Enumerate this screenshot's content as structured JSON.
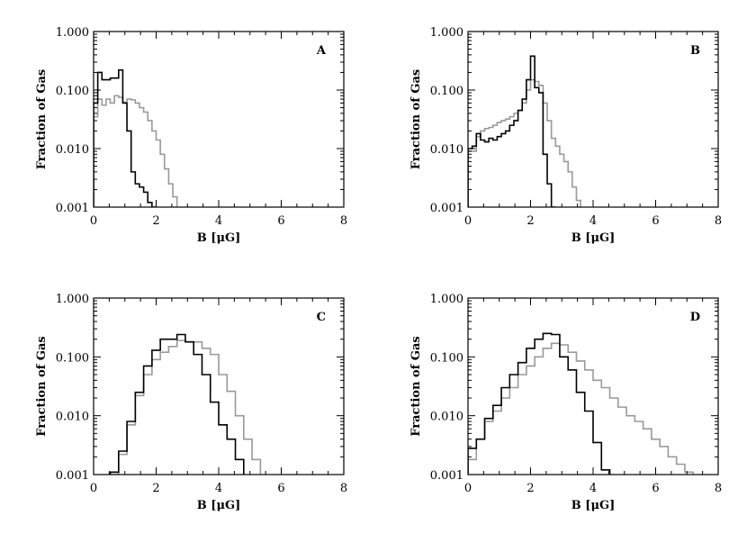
{
  "figure": {
    "layout": "2x2 grid of panels"
  },
  "colors": {
    "series_dark": "#000000",
    "series_light": "#999999",
    "axes": "#000000"
  },
  "chart_data": [
    {
      "type": "line",
      "title": "A",
      "xlabel": "B [μG]",
      "ylabel": "Fraction of Gas",
      "xscale": "linear",
      "yscale": "log",
      "xlim": [
        0,
        8
      ],
      "ylim": [
        0.001,
        1.0
      ],
      "xticks": [
        0,
        2,
        4,
        6,
        8
      ],
      "xtick_labels": [
        "0",
        "2",
        "4",
        "6",
        "8"
      ],
      "yticks": [
        0.001,
        0.01,
        0.1,
        1.0
      ],
      "ytick_labels": [
        "0.001",
        "0.010",
        "0.100",
        "1.000"
      ],
      "label_position": "top-right",
      "grid": false,
      "step_width": 0.133,
      "series": [
        {
          "name": "dark",
          "color": "#000000",
          "x": [
            0.0,
            0.133,
            0.267,
            0.4,
            0.533,
            0.667,
            0.8,
            0.933,
            1.067,
            1.2,
            1.333,
            1.467,
            1.6,
            1.733,
            1.867
          ],
          "y": [
            0.06,
            0.2,
            0.15,
            0.15,
            0.16,
            0.16,
            0.22,
            0.06,
            0.02,
            0.004,
            0.0025,
            0.0022,
            0.0018,
            0.0012,
            0.001
          ]
        },
        {
          "name": "light",
          "color": "#999999",
          "x": [
            0.0,
            0.133,
            0.267,
            0.4,
            0.533,
            0.667,
            0.8,
            0.933,
            1.067,
            1.2,
            1.333,
            1.467,
            1.6,
            1.733,
            1.867,
            2.0,
            2.133,
            2.267,
            2.4,
            2.533
          ],
          "y": [
            0.035,
            0.07,
            0.055,
            0.07,
            0.06,
            0.08,
            0.075,
            0.062,
            0.07,
            0.068,
            0.06,
            0.05,
            0.042,
            0.03,
            0.02,
            0.014,
            0.008,
            0.0045,
            0.0025,
            0.0015
          ]
        }
      ]
    },
    {
      "type": "line",
      "title": "B",
      "xlabel": "B [μG]",
      "ylabel": "Fraction of Gas",
      "xscale": "linear",
      "yscale": "log",
      "xlim": [
        0,
        8
      ],
      "ylim": [
        0.001,
        1.0
      ],
      "xticks": [
        0,
        2,
        4,
        6,
        8
      ],
      "xtick_labels": [
        "0",
        "2",
        "4",
        "6",
        "8"
      ],
      "yticks": [
        0.001,
        0.01,
        0.1,
        1.0
      ],
      "ytick_labels": [
        "0.001",
        "0.010",
        "0.100",
        "1.000"
      ],
      "label_position": "top-right",
      "grid": false,
      "step_width": 0.133,
      "series": [
        {
          "name": "dark",
          "color": "#000000",
          "x": [
            0.0,
            0.133,
            0.267,
            0.4,
            0.533,
            0.667,
            0.8,
            0.933,
            1.067,
            1.2,
            1.333,
            1.467,
            1.6,
            1.733,
            1.867,
            2.0,
            2.133,
            2.267,
            2.4,
            2.533,
            2.667
          ],
          "y": [
            0.01,
            0.011,
            0.018,
            0.014,
            0.013,
            0.015,
            0.014,
            0.016,
            0.018,
            0.02,
            0.025,
            0.03,
            0.045,
            0.07,
            0.15,
            0.38,
            0.11,
            0.09,
            0.008,
            0.0025,
            0.001
          ]
        },
        {
          "name": "light",
          "color": "#999999",
          "x": [
            0.0,
            0.133,
            0.267,
            0.4,
            0.533,
            0.667,
            0.8,
            0.933,
            1.067,
            1.2,
            1.333,
            1.467,
            1.6,
            1.733,
            1.867,
            2.0,
            2.133,
            2.267,
            2.4,
            2.533,
            2.667,
            2.8,
            2.933,
            3.067,
            3.2,
            3.333,
            3.467
          ],
          "y": [
            0.009,
            0.009,
            0.016,
            0.02,
            0.022,
            0.023,
            0.025,
            0.028,
            0.03,
            0.032,
            0.035,
            0.04,
            0.045,
            0.06,
            0.1,
            0.15,
            0.14,
            0.12,
            0.06,
            0.03,
            0.015,
            0.011,
            0.008,
            0.006,
            0.004,
            0.0022,
            0.0013
          ]
        }
      ]
    },
    {
      "type": "line",
      "title": "C",
      "xlabel": "B [μG]",
      "ylabel": "Fraction of Gas",
      "xscale": "linear",
      "yscale": "log",
      "xlim": [
        0,
        8
      ],
      "ylim": [
        0.001,
        1.0
      ],
      "xticks": [
        0,
        2,
        4,
        6,
        8
      ],
      "xtick_labels": [
        "0",
        "2",
        "4",
        "6",
        "8"
      ],
      "yticks": [
        0.001,
        0.01,
        0.1,
        1.0
      ],
      "ytick_labels": [
        "0.001",
        "0.010",
        "0.100",
        "1.000"
      ],
      "label_position": "top-right",
      "grid": false,
      "step_width": 0.267,
      "series": [
        {
          "name": "dark",
          "color": "#000000",
          "x": [
            0.533,
            0.8,
            1.067,
            1.333,
            1.6,
            1.867,
            2.133,
            2.4,
            2.667,
            2.933,
            3.2,
            3.467,
            3.733,
            4.0,
            4.267,
            4.533
          ],
          "y": [
            0.0011,
            0.0025,
            0.008,
            0.025,
            0.07,
            0.13,
            0.2,
            0.2,
            0.24,
            0.18,
            0.11,
            0.05,
            0.017,
            0.007,
            0.004,
            0.0018
          ]
        },
        {
          "name": "light",
          "color": "#999999",
          "x": [
            0.533,
            0.8,
            1.067,
            1.333,
            1.6,
            1.867,
            2.133,
            2.4,
            2.667,
            2.933,
            3.2,
            3.467,
            3.733,
            4.0,
            4.267,
            4.533,
            4.8,
            5.067
          ],
          "y": [
            0.001,
            0.0022,
            0.007,
            0.022,
            0.05,
            0.09,
            0.12,
            0.15,
            0.19,
            0.18,
            0.18,
            0.14,
            0.11,
            0.05,
            0.026,
            0.01,
            0.004,
            0.0018
          ]
        }
      ]
    },
    {
      "type": "line",
      "title": "D",
      "xlabel": "B [μG]",
      "ylabel": "Fraction of Gas",
      "xscale": "linear",
      "yscale": "log",
      "xlim": [
        0,
        8
      ],
      "ylim": [
        0.001,
        1.0
      ],
      "xticks": [
        0,
        2,
        4,
        6,
        8
      ],
      "xtick_labels": [
        "0",
        "2",
        "4",
        "6",
        "8"
      ],
      "yticks": [
        0.001,
        0.01,
        0.1,
        1.0
      ],
      "ytick_labels": [
        "0.001",
        "0.010",
        "0.100",
        "1.000"
      ],
      "label_position": "top-right",
      "grid": false,
      "step_width": 0.267,
      "series": [
        {
          "name": "dark",
          "color": "#000000",
          "x": [
            0.0,
            0.267,
            0.533,
            0.8,
            1.067,
            1.333,
            1.6,
            1.867,
            2.133,
            2.4,
            2.667,
            2.933,
            3.2,
            3.467,
            3.733,
            4.0,
            4.267
          ],
          "y": [
            0.0028,
            0.004,
            0.009,
            0.015,
            0.03,
            0.05,
            0.08,
            0.14,
            0.2,
            0.25,
            0.24,
            0.1,
            0.06,
            0.025,
            0.012,
            0.0035,
            0.0012
          ]
        },
        {
          "name": "light",
          "color": "#999999",
          "x": [
            0.0,
            0.267,
            0.533,
            0.8,
            1.067,
            1.333,
            1.6,
            1.867,
            2.133,
            2.4,
            2.667,
            2.933,
            3.2,
            3.467,
            3.733,
            4.0,
            4.267,
            4.533,
            4.8,
            5.067,
            5.333,
            5.6,
            5.867,
            6.133,
            6.4,
            6.667,
            6.933
          ],
          "y": [
            0.0018,
            0.004,
            0.008,
            0.012,
            0.02,
            0.03,
            0.05,
            0.07,
            0.1,
            0.14,
            0.17,
            0.16,
            0.12,
            0.085,
            0.06,
            0.04,
            0.03,
            0.02,
            0.014,
            0.01,
            0.008,
            0.006,
            0.004,
            0.003,
            0.002,
            0.0015,
            0.0011
          ]
        }
      ]
    }
  ]
}
